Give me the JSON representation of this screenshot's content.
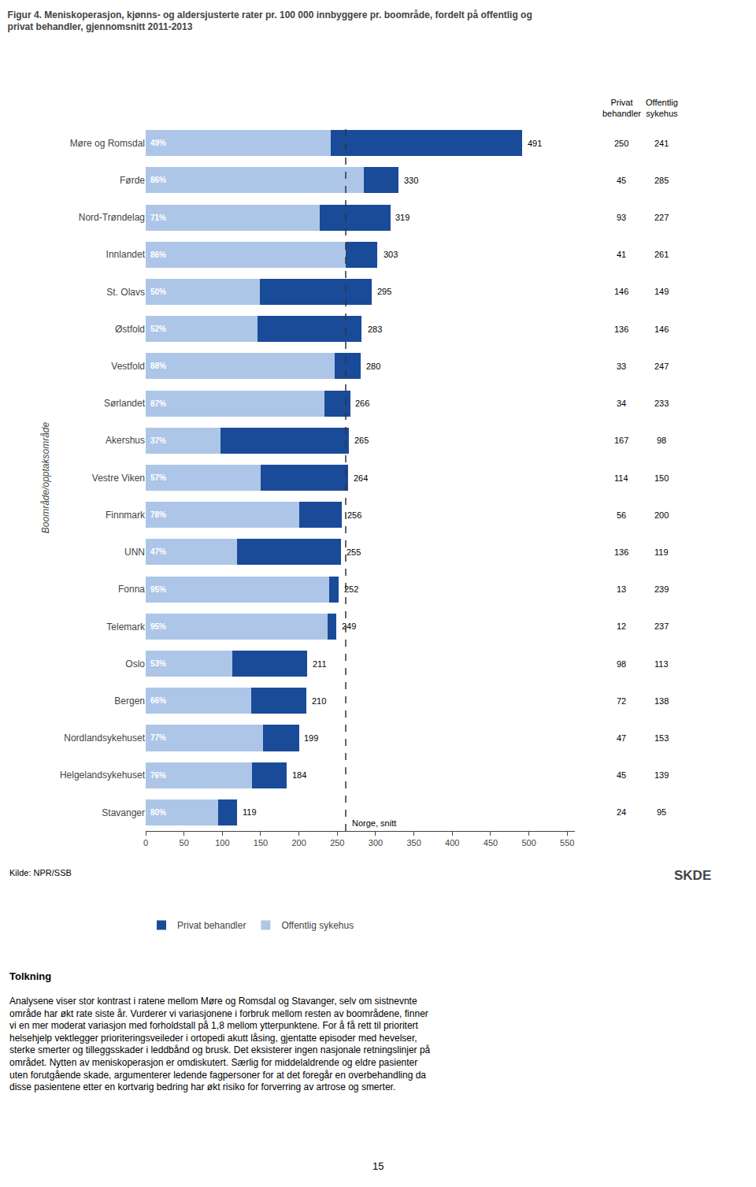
{
  "chart_data": {
    "type": "bar",
    "orientation": "horizontal",
    "stacked": true,
    "title": "Figur 4. Meniskoperasjon, kjønns- og aldersjusterte rater pr. 100 000 innbyggere pr. boområde, fordelt på offentlig og\nprivat behandler, gjennomsnitt 2011-2013",
    "categories": [
      "Møre og Romsdal",
      "Førde",
      "Nord-Trøndelag",
      "Innlandet",
      "St. Olavs",
      "Østfold",
      "Vestfold",
      "Sørlandet",
      "Akershus",
      "Vestre Viken",
      "Finnmark",
      "UNN",
      "Fonna",
      "Telemark",
      "Oslo",
      "Bergen",
      "Nordlandsykehuset",
      "Helgelandsykehuset",
      "Stavanger"
    ],
    "series": [
      {
        "name": "Offentlig sykehus",
        "color": "#adc6e8",
        "values": [
          241,
          285,
          227,
          261,
          149,
          146,
          247,
          233,
          98,
          150,
          200,
          119,
          239,
          237,
          113,
          138,
          153,
          139,
          95
        ]
      },
      {
        "name": "Privat behandler",
        "color": "#1a4b99",
        "values": [
          250,
          45,
          93,
          41,
          146,
          136,
          33,
          34,
          167,
          114,
          56,
          136,
          13,
          12,
          98,
          72,
          47,
          45,
          24
        ]
      }
    ],
    "totals": [
      491,
      330,
      319,
      303,
      295,
      283,
      280,
      266,
      265,
      264,
      256,
      255,
      252,
      249,
      211,
      210,
      199,
      184,
      119
    ],
    "percent_labels": [
      "49%",
      "86%",
      "71%",
      "86%",
      "50%",
      "52%",
      "88%",
      "87%",
      "37%",
      "57%",
      "78%",
      "47%",
      "95%",
      "95%",
      "53%",
      "66%",
      "77%",
      "76%",
      "80%"
    ],
    "reference_line": {
      "value": 261,
      "label": "Norge, snitt"
    },
    "column_headers": [
      "Privat\nbehandler",
      "Offentlig\nsykehus"
    ],
    "xlim": [
      0,
      560
    ],
    "xticks": [
      0,
      50,
      100,
      150,
      200,
      250,
      300,
      350,
      400,
      450,
      500,
      550
    ],
    "ylabel": "Boområde/opptaksområde",
    "grid": false,
    "legend": "lower left",
    "source": "Kilde: NPR/SSB",
    "logo": "SKDE",
    "heading": "Tolkning",
    "body_text": "Analysene viser stor kontrast i ratene mellom Møre og Romsdal og Stavanger, selv om sistnevnte\nområde har økt rate siste år. Vurderer vi variasjonene i forbruk mellom resten av boområdene, finner\nvi en mer moderat variasjon med forholdstall på 1,8 mellom ytterpunktene. For å få rett til prioritert\nhelsehjelp vektlegger prioriteringsveileder i ortopedi akutt låsing, gjentatte episoder med hevelser,\nsterke smerter og tilleggsskader i leddbånd og brusk. Det eksisterer ingen nasjonale retningslinjer på\nområdet. Nytten av meniskoperasjon er omdiskutert. Særlig for middelaldrende og eldre pasienter\nuten forutgående skade, argumenterer ledende fagpersoner for at det foregår en overbehandling da\ndisse pasientene etter en kortvarig bedring har økt risiko for forverring av artrose og smerter.",
    "page_number": "15"
  }
}
